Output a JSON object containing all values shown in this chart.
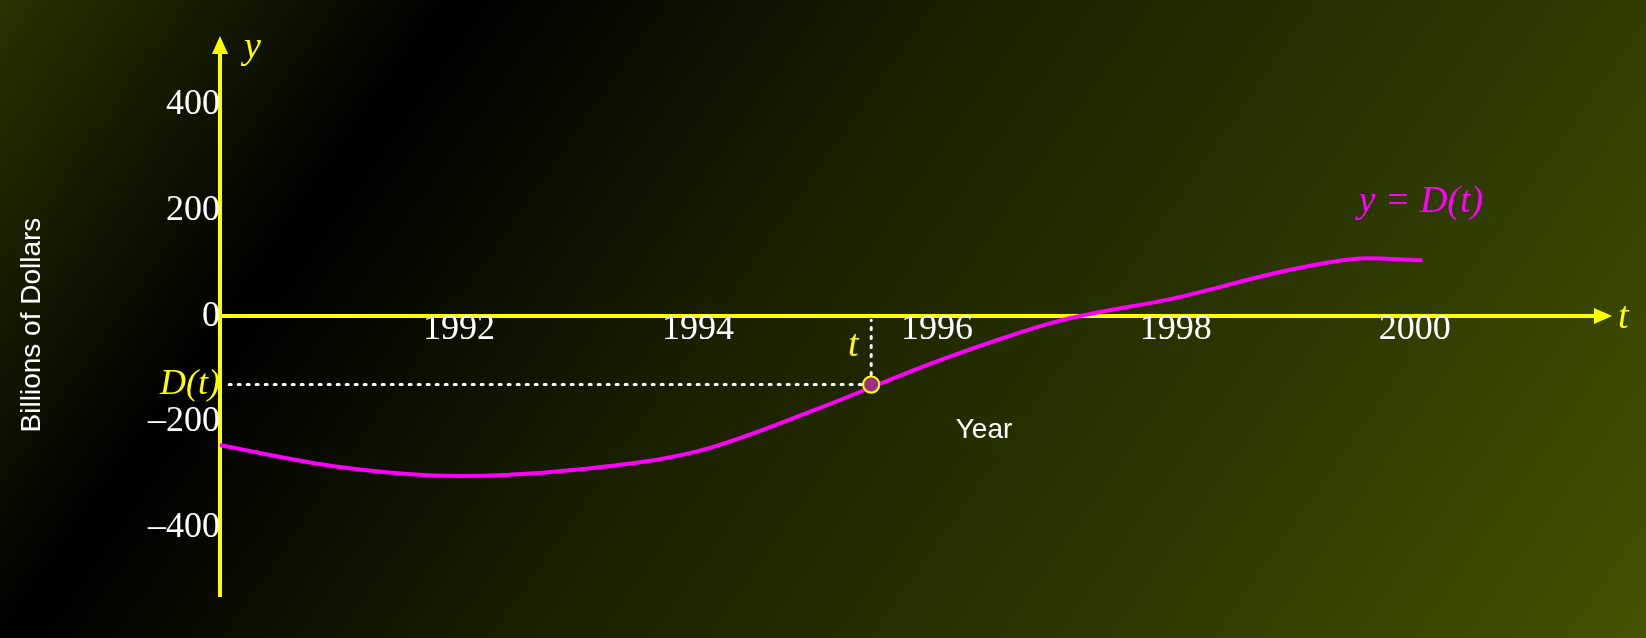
{
  "chart_data": {
    "type": "line",
    "xlabel": "Year",
    "ylabel": "Billions of Dollars",
    "xlim": [
      1990,
      2001.6
    ],
    "ylim": [
      -530,
      520
    ],
    "xticks": [
      1992,
      1994,
      1996,
      1998,
      2000
    ],
    "yticks": [
      {
        "value": -400,
        "label": "–400"
      },
      {
        "value": -200,
        "label": "–200"
      },
      {
        "value": -129,
        "label": "D(t)"
      },
      0,
      200,
      400
    ],
    "grid": false,
    "legend": false,
    "series": [
      {
        "type": "line",
        "color": "#ff00ff",
        "marker": "none",
        "x": [
          1990,
          1991,
          1992,
          1993,
          1994,
          1995,
          1996,
          1997,
          1998,
          1999,
          1999.6,
          2000.05
        ],
        "values": [
          -244,
          -285,
          -302,
          -290,
          -255,
          -175,
          -85,
          -10,
          35,
          90,
          110,
          106
        ]
      },
      {
        "type": "scatter",
        "color": "#9b2f86",
        "marker": "circle",
        "x": [
          1995.45
        ],
        "values": [
          -129
        ]
      }
    ],
    "annotations": [
      "y = D(t)",
      "t",
      "y",
      "t"
    ]
  }
}
